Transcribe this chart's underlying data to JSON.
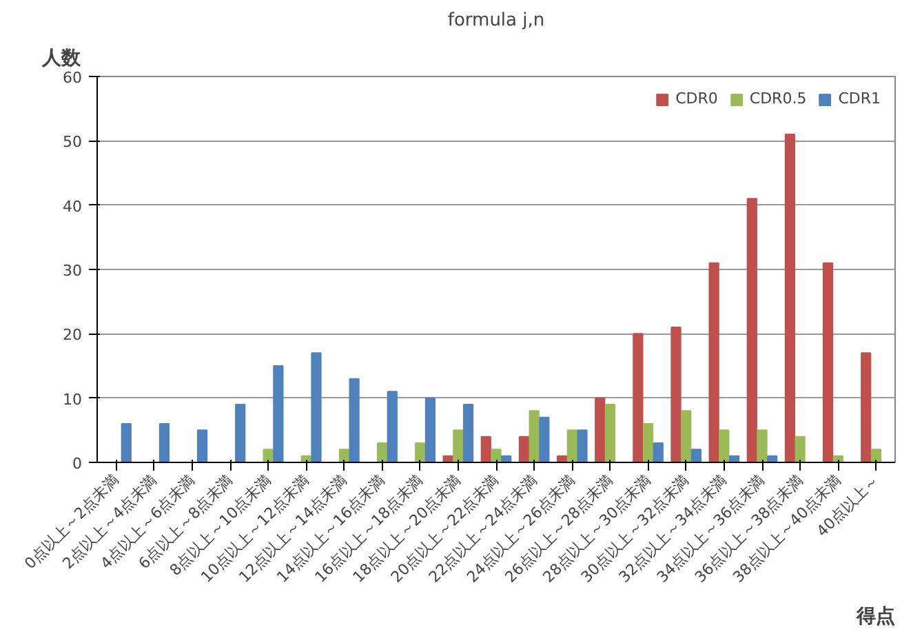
{
  "chart_data": {
    "type": "bar",
    "title": "formula j,n",
    "ylabel": "人数",
    "xlabel": "得点",
    "categories": [
      "0点以上～2点未満",
      "2点以上～4点未満",
      "4点以上～6点未満",
      "6点以上～8点未満",
      "8点以上～10点未満",
      "10点以上～12点未満",
      "12点以上～14点未満",
      "14点以上～16点未満",
      "16点以上～18点未満",
      "18点以上～20点未満",
      "20点以上～22点未満",
      "22点以上～24点未満",
      "24点以上～26点未満",
      "26点以上～28点未満",
      "28点以上～30点未満",
      "30点以上～32点未満",
      "32点以上～34点未満",
      "34点以上～36点未満",
      "36点以上～38点未満",
      "38点以上～40点未満",
      "40点以上～"
    ],
    "series": [
      {
        "name": "CDR0",
        "color": "#c0504d",
        "values": [
          0,
          0,
          0,
          0,
          0,
          0,
          0,
          0,
          0,
          1,
          4,
          4,
          1,
          10,
          20,
          21,
          31,
          41,
          51,
          31,
          17
        ]
      },
      {
        "name": "CDR0.5",
        "color": "#9bbb59",
        "values": [
          0,
          0,
          0,
          0,
          2,
          1,
          2,
          3,
          3,
          5,
          2,
          8,
          5,
          9,
          6,
          8,
          5,
          5,
          4,
          1,
          2
        ]
      },
      {
        "name": "CDR1",
        "color": "#4f81bd",
        "values": [
          6,
          6,
          5,
          9,
          15,
          17,
          13,
          11,
          10,
          9,
          1,
          7,
          5,
          0,
          3,
          2,
          1,
          1,
          0,
          0,
          0
        ]
      }
    ],
    "ylim": [
      0,
      60
    ],
    "yticks": [
      0,
      10,
      20,
      30,
      40,
      50,
      60
    ],
    "grid": "y",
    "legend": "top right"
  }
}
